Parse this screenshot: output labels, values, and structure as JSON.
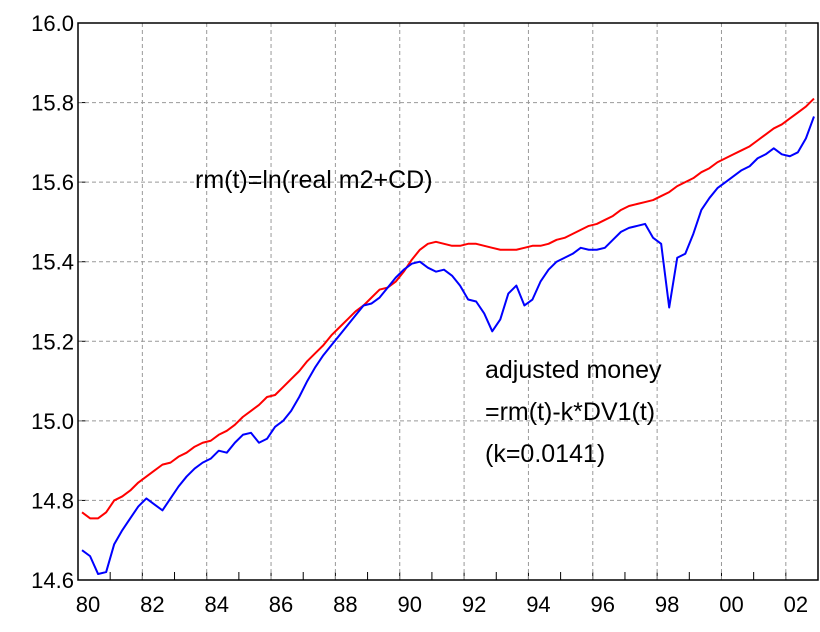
{
  "chart_data": {
    "type": "line",
    "categories": [
      "80",
      null,
      null,
      null,
      null,
      null,
      null,
      null,
      "82",
      null,
      null,
      null,
      null,
      null,
      null,
      null,
      "84",
      null,
      null,
      null,
      null,
      null,
      null,
      null,
      "86",
      null,
      null,
      null,
      null,
      null,
      null,
      null,
      "88",
      null,
      null,
      null,
      null,
      null,
      null,
      null,
      "90",
      null,
      null,
      null,
      null,
      null,
      null,
      null,
      "92",
      null,
      null,
      null,
      null,
      null,
      null,
      null,
      "94",
      null,
      null,
      null,
      null,
      null,
      null,
      null,
      "96",
      null,
      null,
      null,
      null,
      null,
      null,
      null,
      "98",
      null,
      null,
      null,
      null,
      null,
      null,
      null,
      "00",
      null,
      null,
      null,
      null,
      null,
      null,
      null,
      "02",
      null,
      null,
      null
    ],
    "series": [
      {
        "color": "#ff0000",
        "values": [
          14.77,
          14.755,
          14.755,
          14.77,
          14.8,
          14.81,
          14.825,
          14.845,
          14.86,
          14.875,
          14.89,
          14.895,
          14.91,
          14.92,
          14.935,
          14.945,
          14.95,
          14.965,
          14.975,
          14.99,
          15.01,
          15.025,
          15.04,
          15.06,
          15.065,
          15.085,
          15.105,
          15.125,
          15.15,
          15.17,
          15.19,
          15.215,
          15.235,
          15.255,
          15.275,
          15.29,
          15.31,
          15.33,
          15.335,
          15.35,
          15.375,
          15.405,
          15.43,
          15.445,
          15.45,
          15.445,
          15.44,
          15.44,
          15.445,
          15.445,
          15.44,
          15.435,
          15.43,
          15.43,
          15.43,
          15.435,
          15.44,
          15.44,
          15.445,
          15.455,
          15.46,
          15.47,
          15.48,
          15.49,
          15.495,
          15.505,
          15.515,
          15.53,
          15.54,
          15.545,
          15.55,
          15.555,
          15.565,
          15.575,
          15.59,
          15.6,
          15.61,
          15.625,
          15.635,
          15.65,
          15.66,
          15.67,
          15.68,
          15.69,
          15.705,
          15.72,
          15.735,
          15.745,
          15.76,
          15.775,
          15.79,
          15.81
        ]
      },
      {
        "color": "#0000ff",
        "values": [
          14.675,
          14.66,
          14.615,
          14.62,
          14.69,
          14.725,
          14.755,
          14.785,
          14.805,
          14.79,
          14.775,
          14.805,
          14.835,
          14.86,
          14.88,
          14.895,
          14.905,
          14.925,
          14.92,
          14.945,
          14.965,
          14.97,
          14.945,
          14.955,
          14.985,
          15.0,
          15.025,
          15.06,
          15.1,
          15.135,
          15.165,
          15.19,
          15.215,
          15.24,
          15.265,
          15.29,
          15.295,
          15.31,
          15.335,
          15.36,
          15.38,
          15.395,
          15.4,
          15.385,
          15.375,
          15.38,
          15.365,
          15.34,
          15.305,
          15.3,
          15.27,
          15.225,
          15.255,
          15.32,
          15.34,
          15.29,
          15.305,
          15.35,
          15.38,
          15.4,
          15.41,
          15.42,
          15.435,
          15.43,
          15.43,
          15.435,
          15.455,
          15.475,
          15.485,
          15.49,
          15.495,
          15.46,
          15.445,
          15.285,
          15.41,
          15.42,
          15.47,
          15.53,
          15.56,
          15.585,
          15.6,
          15.615,
          15.63,
          15.64,
          15.66,
          15.67,
          15.685,
          15.67,
          15.665,
          15.675,
          15.71,
          15.765
        ]
      }
    ],
    "ylim": [
      14.6,
      16.0
    ],
    "yticks": [
      14.6,
      14.8,
      {
        "value": 15.0,
        "label": "15.0"
      },
      15.2,
      15.4,
      15.6,
      15.8,
      {
        "value": 16.0,
        "label": "16.0"
      }
    ],
    "grid": true,
    "annotations": [
      "rm(t)=ln(real m2+CD)",
      "adjusted money",
      "=rm(t)-k*DV1(t)",
      "(k=0.0141)"
    ]
  }
}
